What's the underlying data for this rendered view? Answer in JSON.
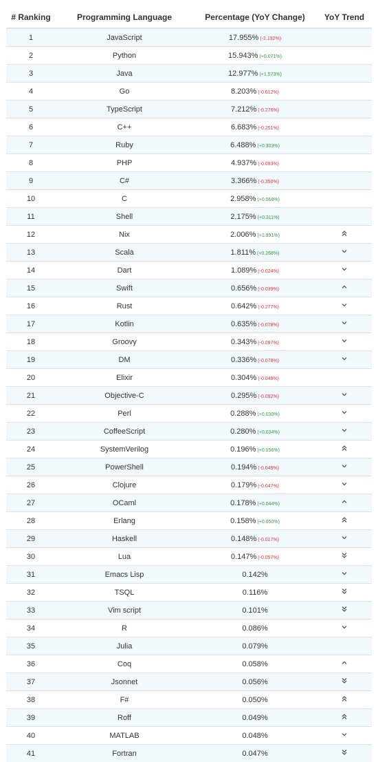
{
  "headers": {
    "rank": "# Ranking",
    "language": "Programming Language",
    "percentage": "Percentage (YoY Change)",
    "trend": "YoY Trend"
  },
  "rows": [
    {
      "rank": "1",
      "language": "JavaScript",
      "pct": "17.955%",
      "change": "(-2.192%)",
      "dir": "down",
      "trend": ""
    },
    {
      "rank": "2",
      "language": "Python",
      "pct": "15.943%",
      "change": "(+0.071%)",
      "dir": "up",
      "trend": ""
    },
    {
      "rank": "3",
      "language": "Java",
      "pct": "12.977%",
      "change": "(+1.573%)",
      "dir": "up",
      "trend": ""
    },
    {
      "rank": "4",
      "language": "Go",
      "pct": "8.203%",
      "change": "(-0.612%)",
      "dir": "down",
      "trend": ""
    },
    {
      "rank": "5",
      "language": "TypeScript",
      "pct": "7.212%",
      "change": "(-0.276%)",
      "dir": "down",
      "trend": ""
    },
    {
      "rank": "6",
      "language": "C++",
      "pct": "6.683%",
      "change": "(-0.251%)",
      "dir": "down",
      "trend": ""
    },
    {
      "rank": "7",
      "language": "Ruby",
      "pct": "6.488%",
      "change": "(+0.303%)",
      "dir": "up",
      "trend": ""
    },
    {
      "rank": "8",
      "language": "PHP",
      "pct": "4.937%",
      "change": "(-0.093%)",
      "dir": "down",
      "trend": ""
    },
    {
      "rank": "9",
      "language": "C#",
      "pct": "3.366%",
      "change": "(-0.350%)",
      "dir": "down",
      "trend": ""
    },
    {
      "rank": "10",
      "language": "C",
      "pct": "2.958%",
      "change": "(+0.068%)",
      "dir": "up",
      "trend": ""
    },
    {
      "rank": "11",
      "language": "Shell",
      "pct": "2.175%",
      "change": "(+0.311%)",
      "dir": "up",
      "trend": ""
    },
    {
      "rank": "12",
      "language": "Nix",
      "pct": "2.006%",
      "change": "(+1.991%)",
      "dir": "up",
      "trend": "double-up"
    },
    {
      "rank": "13",
      "language": "Scala",
      "pct": "1.811%",
      "change": "(+0.268%)",
      "dir": "up",
      "trend": "down"
    },
    {
      "rank": "14",
      "language": "Dart",
      "pct": "1.089%",
      "change": "(-0.024%)",
      "dir": "down",
      "trend": "down"
    },
    {
      "rank": "15",
      "language": "Swift",
      "pct": "0.656%",
      "change": "(-0.039%)",
      "dir": "down",
      "trend": "up"
    },
    {
      "rank": "16",
      "language": "Rust",
      "pct": "0.642%",
      "change": "(-0.277%)",
      "dir": "down",
      "trend": "down"
    },
    {
      "rank": "17",
      "language": "Kotlin",
      "pct": "0.635%",
      "change": "(-0.078%)",
      "dir": "down",
      "trend": "down"
    },
    {
      "rank": "18",
      "language": "Groovy",
      "pct": "0.343%",
      "change": "(-0.097%)",
      "dir": "down",
      "trend": "down"
    },
    {
      "rank": "19",
      "language": "DM",
      "pct": "0.336%",
      "change": "(-0.078%)",
      "dir": "down",
      "trend": "down"
    },
    {
      "rank": "20",
      "language": "Elixir",
      "pct": "0.304%",
      "change": "(-0.049%)",
      "dir": "down",
      "trend": ""
    },
    {
      "rank": "21",
      "language": "Objective-C",
      "pct": "0.295%",
      "change": "(-0.092%)",
      "dir": "down",
      "trend": "down"
    },
    {
      "rank": "22",
      "language": "Perl",
      "pct": "0.288%",
      "change": "(+0.030%)",
      "dir": "up",
      "trend": "down"
    },
    {
      "rank": "23",
      "language": "CoffeeScript",
      "pct": "0.280%",
      "change": "(+0.034%)",
      "dir": "up",
      "trend": "down"
    },
    {
      "rank": "24",
      "language": "SystemVerilog",
      "pct": "0.196%",
      "change": "(+0.156%)",
      "dir": "up",
      "trend": "double-up"
    },
    {
      "rank": "25",
      "language": "PowerShell",
      "pct": "0.194%",
      "change": "(-0.049%)",
      "dir": "down",
      "trend": "down"
    },
    {
      "rank": "26",
      "language": "Clojure",
      "pct": "0.179%",
      "change": "(-0.047%)",
      "dir": "down",
      "trend": "down"
    },
    {
      "rank": "27",
      "language": "OCaml",
      "pct": "0.178%",
      "change": "(+0.044%)",
      "dir": "up",
      "trend": "up"
    },
    {
      "rank": "28",
      "language": "Erlang",
      "pct": "0.158%",
      "change": "(+0.050%)",
      "dir": "up",
      "trend": "double-up"
    },
    {
      "rank": "29",
      "language": "Haskell",
      "pct": "0.148%",
      "change": "(-0.017%)",
      "dir": "down",
      "trend": "down"
    },
    {
      "rank": "30",
      "language": "Lua",
      "pct": "0.147%",
      "change": "(-0.057%)",
      "dir": "down",
      "trend": "double-down"
    },
    {
      "rank": "31",
      "language": "Emacs Lisp",
      "pct": "0.142%",
      "change": "",
      "dir": "",
      "trend": "down"
    },
    {
      "rank": "32",
      "language": "TSQL",
      "pct": "0.116%",
      "change": "",
      "dir": "",
      "trend": "double-down"
    },
    {
      "rank": "33",
      "language": "Vim script",
      "pct": "0.101%",
      "change": "",
      "dir": "",
      "trend": "double-down"
    },
    {
      "rank": "34",
      "language": "R",
      "pct": "0.086%",
      "change": "",
      "dir": "",
      "trend": "down"
    },
    {
      "rank": "35",
      "language": "Julia",
      "pct": "0.079%",
      "change": "",
      "dir": "",
      "trend": ""
    },
    {
      "rank": "36",
      "language": "Coq",
      "pct": "0.058%",
      "change": "",
      "dir": "",
      "trend": "up"
    },
    {
      "rank": "37",
      "language": "Jsonnet",
      "pct": "0.056%",
      "change": "",
      "dir": "",
      "trend": "double-down"
    },
    {
      "rank": "38",
      "language": "F#",
      "pct": "0.050%",
      "change": "",
      "dir": "",
      "trend": "double-up"
    },
    {
      "rank": "39",
      "language": "Roff",
      "pct": "0.049%",
      "change": "",
      "dir": "",
      "trend": "double-up"
    },
    {
      "rank": "40",
      "language": "MATLAB",
      "pct": "0.048%",
      "change": "",
      "dir": "",
      "trend": "down"
    },
    {
      "rank": "41",
      "language": "Fortran",
      "pct": "0.047%",
      "change": "",
      "dir": "",
      "trend": "double-down"
    }
  ]
}
